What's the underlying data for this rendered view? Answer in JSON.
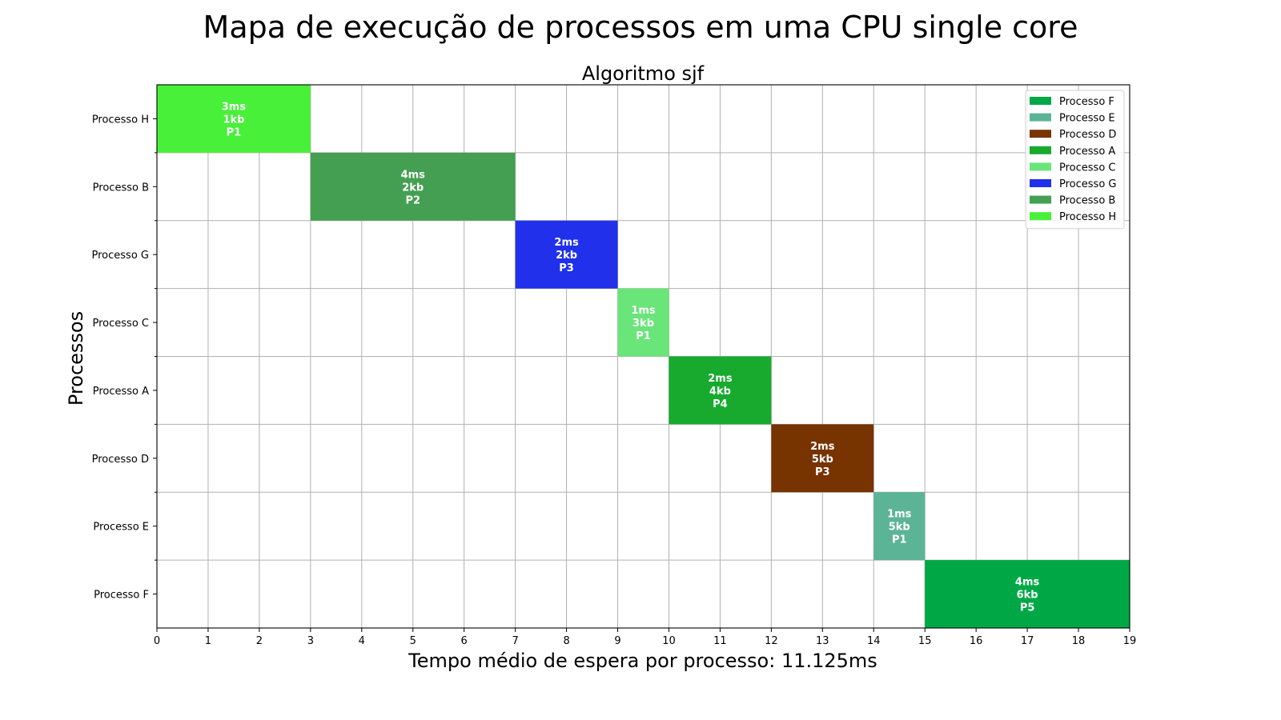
{
  "suptitle": "Mapa de execução de processos em uma CPU single core",
  "chart_data": {
    "type": "gantt",
    "title": "Algoritmo sjf",
    "xlabel": "Tempo médio de espera por processo: 11.125ms",
    "ylabel": "Processos",
    "xlim": [
      0,
      19
    ],
    "x_ticks": [
      0,
      1,
      2,
      3,
      4,
      5,
      6,
      7,
      8,
      9,
      10,
      11,
      12,
      13,
      14,
      15,
      16,
      17,
      18,
      19
    ],
    "grid": true,
    "legend_position": "top-right",
    "categories": [
      "Processo H",
      "Processo B",
      "Processo G",
      "Processo C",
      "Processo A",
      "Processo D",
      "Processo E",
      "Processo F"
    ],
    "bars": [
      {
        "name": "Processo H",
        "start": 0,
        "duration": 3,
        "color": "#48f03a",
        "labels": [
          "3ms",
          "1kb",
          "P1"
        ]
      },
      {
        "name": "Processo B",
        "start": 3,
        "duration": 4,
        "color": "#449f52",
        "labels": [
          "4ms",
          "2kb",
          "P2"
        ]
      },
      {
        "name": "Processo G",
        "start": 7,
        "duration": 2,
        "color": "#2130ea",
        "labels": [
          "2ms",
          "2kb",
          "P3"
        ]
      },
      {
        "name": "Processo C",
        "start": 9,
        "duration": 1,
        "color": "#69e57a",
        "labels": [
          "1ms",
          "3kb",
          "P1"
        ]
      },
      {
        "name": "Processo A",
        "start": 10,
        "duration": 2,
        "color": "#17aa2e",
        "labels": [
          "2ms",
          "4kb",
          "P4"
        ]
      },
      {
        "name": "Processo D",
        "start": 12,
        "duration": 2,
        "color": "#773300",
        "labels": [
          "2ms",
          "5kb",
          "P3"
        ]
      },
      {
        "name": "Processo E",
        "start": 14,
        "duration": 1,
        "color": "#5cb497",
        "labels": [
          "1ms",
          "5kb",
          "P1"
        ]
      },
      {
        "name": "Processo F",
        "start": 15,
        "duration": 4,
        "color": "#00a845",
        "labels": [
          "4ms",
          "6kb",
          "P5"
        ]
      }
    ],
    "legend": [
      {
        "label": "Processo F",
        "color": "#00a845"
      },
      {
        "label": "Processo E",
        "color": "#5cb497"
      },
      {
        "label": "Processo D",
        "color": "#773300"
      },
      {
        "label": "Processo A",
        "color": "#17aa2e"
      },
      {
        "label": "Processo C",
        "color": "#69e57a"
      },
      {
        "label": "Processo G",
        "color": "#2130ea"
      },
      {
        "label": "Processo B",
        "color": "#449f52"
      },
      {
        "label": "Processo H",
        "color": "#48f03a"
      }
    ]
  }
}
